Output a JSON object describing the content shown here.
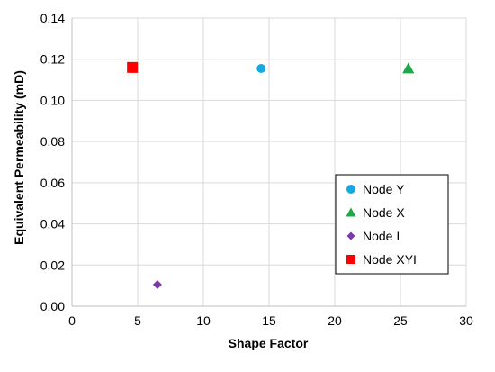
{
  "chart_data": {
    "type": "scatter",
    "title": "",
    "xlabel": "Shape Factor",
    "ylabel": "Equivalent Permeability (mD)",
    "xlim": [
      0,
      30
    ],
    "ylim": [
      0,
      0.14
    ],
    "x_ticks": [
      "0",
      "5",
      "10",
      "15",
      "20",
      "25",
      "30"
    ],
    "y_ticks": [
      "0.00",
      "0.02",
      "0.04",
      "0.06",
      "0.08",
      "0.10",
      "0.12",
      "0.14"
    ],
    "grid": true,
    "legend_position": "lower-right",
    "series": [
      {
        "name": "Node Y",
        "marker": "circle",
        "color": "#16A8E0",
        "points": [
          {
            "x": 14.4,
            "y": 0.1155
          }
        ]
      },
      {
        "name": "Node X",
        "marker": "triangle",
        "color": "#1DA84A",
        "points": [
          {
            "x": 25.6,
            "y": 0.1155
          }
        ]
      },
      {
        "name": "Node I",
        "marker": "diamond",
        "color": "#7B3AA8",
        "points": [
          {
            "x": 6.5,
            "y": 0.0105
          }
        ]
      },
      {
        "name": "Node XYI",
        "marker": "square",
        "color": "#FF0000",
        "points": [
          {
            "x": 4.6,
            "y": 0.116
          }
        ]
      }
    ]
  }
}
